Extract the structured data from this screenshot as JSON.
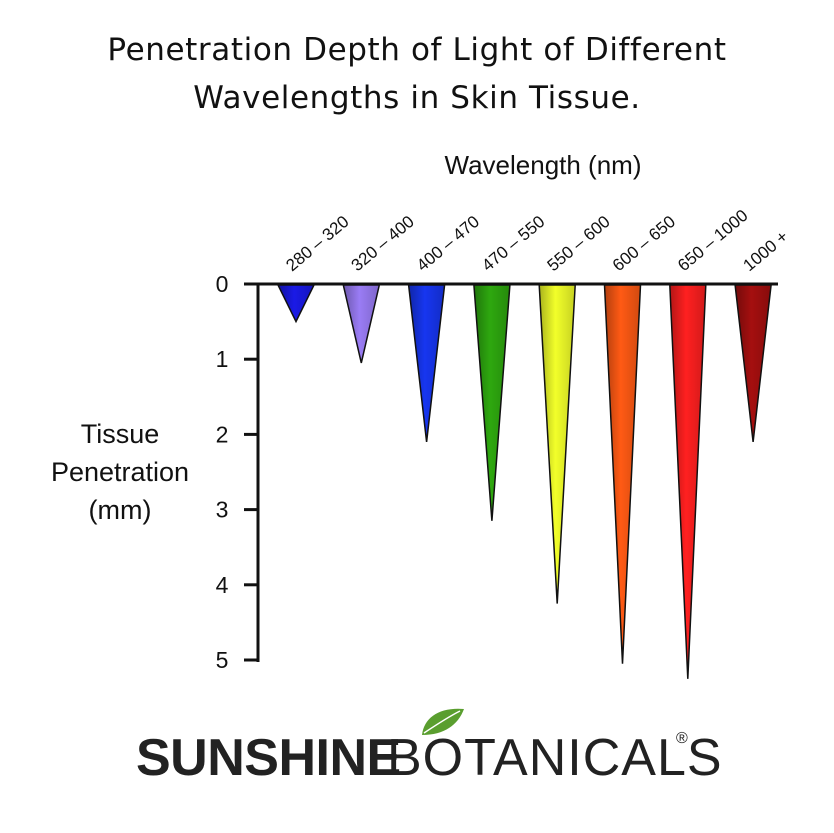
{
  "title": {
    "line1": "Penetration Depth of Light of Different",
    "line2": "Wavelengths in Skin Tissue."
  },
  "brand": {
    "name_bold": "SUNSHINE",
    "name_light": "BOTANICALS",
    "registered_mark": "®",
    "leaf_icon": "leaf-icon",
    "leaf_color": "#5a9e2f"
  },
  "chart_data": {
    "type": "bar",
    "title": "",
    "xlabel": "Wavelength (nm)",
    "ylabel": [
      "Tissue",
      "Penetration",
      "(mm)"
    ],
    "ylim": [
      0,
      5
    ],
    "yticks": [
      "0",
      "1",
      "2",
      "3",
      "4",
      "5"
    ],
    "y_inverted": true,
    "categories": [
      "280 – 320",
      "320 – 400",
      "400 – 470",
      "470 – 550",
      "550 – 600",
      "600 – 650",
      "650 – 1000",
      "1000 +"
    ],
    "values": [
      0.5,
      1.05,
      2.1,
      3.15,
      4.25,
      5.05,
      5.25,
      2.1
    ],
    "colors": [
      "#1a1ae6",
      "#9a7cf5",
      "#1736f0",
      "#2ea80f",
      "#f2ff2a",
      "#ff5a14",
      "#ff2020",
      "#a50f0f"
    ],
    "grid": false,
    "legend": "none"
  }
}
